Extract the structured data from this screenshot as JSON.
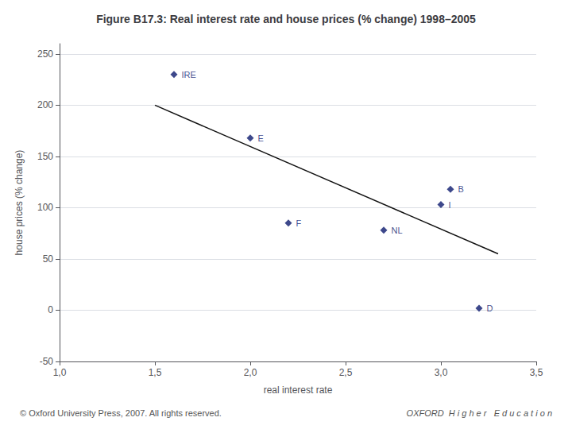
{
  "chart_data": {
    "type": "scatter",
    "title": "Figure B17.3: Real interest rate and house prices (% change) 1998–2005",
    "xlabel": "real interest rate",
    "ylabel": "house prices (% change)",
    "series": [
      {
        "type": "scatter",
        "marker": "diamond",
        "color": "#0d1a6e",
        "x": [
          1.6,
          2.0,
          2.2,
          3.05,
          3.0,
          2.7,
          3.2
        ],
        "values": [
          230,
          168,
          85,
          118,
          103,
          78,
          2
        ],
        "labels": [
          "IRE",
          "E",
          "F",
          "B",
          "I",
          "NL",
          "D"
        ]
      },
      {
        "type": "line",
        "color": "#111111",
        "x": [
          1.5,
          3.3
        ],
        "values": [
          200,
          55
        ]
      }
    ],
    "xlim": [
      1.0,
      3.5
    ],
    "ylim": [
      -50,
      260
    ],
    "xticks": [
      {
        "value": 1.0,
        "label": "1,0"
      },
      {
        "value": 1.5,
        "label": "1,5"
      },
      {
        "value": 2.0,
        "label": "2,0"
      },
      {
        "value": 2.5,
        "label": "2,5"
      },
      {
        "value": 3.0,
        "label": "3,0"
      },
      {
        "value": 3.5,
        "label": "3,5"
      }
    ],
    "yticks": [
      -50,
      0,
      50,
      100,
      150,
      200,
      250
    ],
    "grid": true,
    "annotations": [
      "© Oxford University Press, 2007. All rights reserved.",
      "OXFORD  H i g h e r   E d u c a t i o n"
    ]
  }
}
